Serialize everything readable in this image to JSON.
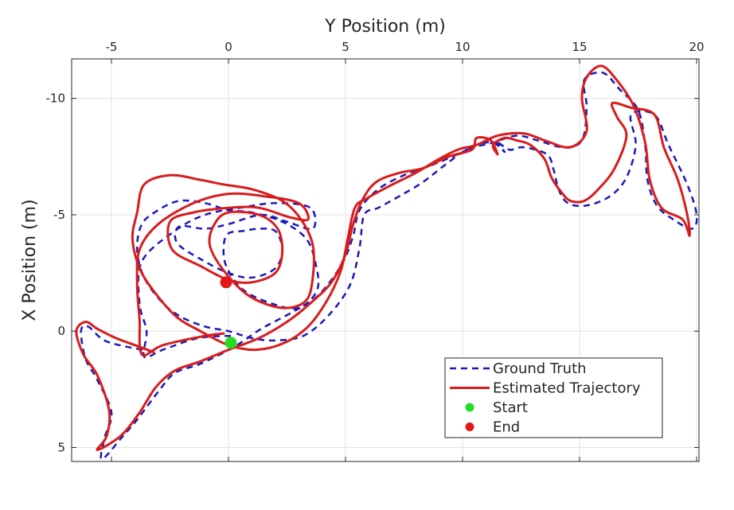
{
  "chart_data": {
    "type": "line",
    "xlabel": "Y Position (m)",
    "ylabel": "X Position (m)",
    "xlim": [
      -6.7,
      20.1
    ],
    "ylim": [
      5.6,
      -11.7
    ],
    "y_reversed": true,
    "x_axis_position": "top",
    "xticks": [
      -5,
      0,
      5,
      10,
      15,
      20
    ],
    "yticks": [
      -10,
      -5,
      0,
      5
    ],
    "xtick_labels": [
      "-5",
      "0",
      "5",
      "10",
      "15",
      "20"
    ],
    "ytick_labels": [
      "-10",
      "-5",
      "0",
      "5"
    ],
    "grid": true,
    "legend_position": "bottom-right",
    "series": [
      {
        "name": "Ground Truth",
        "style": "dashed",
        "color": "#1a1ab8",
        "points": [
          [
            0.1,
            0.2
          ],
          [
            -1.3,
            0.3
          ],
          [
            -2.8,
            0.8
          ],
          [
            -3.6,
            1.1
          ],
          [
            -3.5,
            0
          ],
          [
            -3.8,
            -1.2
          ],
          [
            -3.7,
            -3
          ],
          [
            -2.3,
            -4.3
          ],
          [
            -1,
            -5
          ],
          [
            0.5,
            -5.3
          ],
          [
            2,
            -5.5
          ],
          [
            3.5,
            -5.3
          ],
          [
            3.6,
            -4.4
          ],
          [
            2.5,
            -4.7
          ],
          [
            1.4,
            -5
          ],
          [
            0,
            -4.6
          ],
          [
            -1,
            -4.4
          ],
          [
            -2.1,
            -4.5
          ],
          [
            -2.2,
            -3.8
          ],
          [
            -1.2,
            -3.1
          ],
          [
            0,
            -2.5
          ],
          [
            1,
            -2.3
          ],
          [
            2,
            -2.7
          ],
          [
            2.3,
            -3.5
          ],
          [
            2,
            -4.3
          ],
          [
            1.3,
            -4.4
          ],
          [
            0.6,
            -4.3
          ],
          [
            0,
            -4.2
          ],
          [
            -0.2,
            -3.7
          ],
          [
            -0.1,
            -2.8
          ],
          [
            0.6,
            -1.8
          ],
          [
            1.8,
            -1.2
          ],
          [
            3,
            -1
          ],
          [
            3.8,
            -1.8
          ],
          [
            3.7,
            -3
          ],
          [
            3.3,
            -4
          ],
          [
            2.3,
            -4.7
          ],
          [
            1,
            -5.1
          ],
          [
            0,
            -5.2
          ],
          [
            -1,
            -5.5
          ],
          [
            -2.1,
            -5.6
          ],
          [
            -3,
            -5.2
          ],
          [
            -3.7,
            -4.6
          ],
          [
            -3.9,
            -3.5
          ],
          [
            -3.6,
            -2.3
          ],
          [
            -2.8,
            -1.2
          ],
          [
            -2,
            -0.6
          ],
          [
            -1,
            -0.2
          ],
          [
            0,
            0
          ],
          [
            1,
            0.3
          ],
          [
            2,
            0.4
          ],
          [
            3.2,
            0.2
          ],
          [
            4.3,
            -0.7
          ],
          [
            5.2,
            -2
          ],
          [
            5.6,
            -3.6
          ],
          [
            5.8,
            -5
          ],
          [
            6.4,
            -5.3
          ],
          [
            7.3,
            -5.8
          ],
          [
            8.3,
            -6.4
          ],
          [
            9.2,
            -7.1
          ],
          [
            10.2,
            -7.8
          ],
          [
            11.3,
            -8.1
          ],
          [
            12.3,
            -8.4
          ],
          [
            13.2,
            -8.2
          ],
          [
            14.3,
            -7.9
          ],
          [
            15.1,
            -8.2
          ],
          [
            15.3,
            -9.6
          ],
          [
            15.2,
            -10.8
          ],
          [
            16,
            -11.1
          ],
          [
            16.7,
            -10.4
          ],
          [
            17.5,
            -9.5
          ],
          [
            17.8,
            -8
          ],
          [
            17.9,
            -6.5
          ],
          [
            18.3,
            -5.4
          ],
          [
            19,
            -4.8
          ],
          [
            19.8,
            -4.4
          ],
          [
            20,
            -5
          ],
          [
            19.6,
            -6.3
          ],
          [
            18.8,
            -8
          ],
          [
            18.2,
            -9.3
          ],
          [
            17.2,
            -9.3
          ],
          [
            17.4,
            -8
          ],
          [
            17,
            -6.6
          ],
          [
            16.3,
            -5.8
          ],
          [
            15.3,
            -5.4
          ],
          [
            14.5,
            -5.5
          ],
          [
            14.1,
            -6.1
          ],
          [
            13.9,
            -6.9
          ],
          [
            13.6,
            -7.6
          ],
          [
            12.6,
            -7.9
          ],
          [
            12,
            -7.8
          ],
          [
            11.4,
            -8.2
          ],
          [
            11.8,
            -7.7
          ],
          [
            11.3,
            -8.1
          ],
          [
            10.6,
            -8
          ],
          [
            9.8,
            -7.6
          ],
          [
            8.6,
            -7.1
          ],
          [
            7.5,
            -6.7
          ],
          [
            6.4,
            -6.1
          ],
          [
            5.6,
            -5.2
          ],
          [
            5.3,
            -4
          ],
          [
            4.8,
            -2.8
          ],
          [
            3.8,
            -1.5
          ],
          [
            2.7,
            -0.8
          ],
          [
            1.4,
            -0.1
          ],
          [
            0.2,
            0.7
          ],
          [
            -1.2,
            1.4
          ],
          [
            -2.3,
            1.8
          ],
          [
            -3,
            2.6
          ],
          [
            -3.9,
            3.8
          ],
          [
            -4.5,
            4.5
          ],
          [
            -5.4,
            5.5
          ],
          [
            -5.3,
            4.6
          ],
          [
            -5,
            3.5
          ],
          [
            -5.6,
            2.1
          ],
          [
            -6.1,
            1.2
          ],
          [
            -6.3,
            0
          ],
          [
            -6,
            -0.2
          ],
          [
            -5.3,
            0.4
          ],
          [
            -4.2,
            0.7
          ],
          [
            -3,
            0.9
          ]
        ]
      },
      {
        "name": "Estimated Trajectory",
        "style": "solid",
        "color": "#d81c1c",
        "points": [
          [
            -0.2,
            0.1
          ],
          [
            -1,
            0.2
          ],
          [
            -2.8,
            0.6
          ],
          [
            -3.7,
            1
          ],
          [
            -3.8,
            -0.5
          ],
          [
            -3.9,
            -2
          ],
          [
            -3.8,
            -3.5
          ],
          [
            -3,
            -4.6
          ],
          [
            -1.5,
            -5.5
          ],
          [
            0,
            -5.9
          ],
          [
            1.5,
            -5.8
          ],
          [
            3,
            -5.5
          ],
          [
            3.4,
            -4.8
          ],
          [
            2.6,
            -4.9
          ],
          [
            1.3,
            -5.3
          ],
          [
            0,
            -5.3
          ],
          [
            -1.5,
            -5.1
          ],
          [
            -2.5,
            -4.7
          ],
          [
            -2.4,
            -3.5
          ],
          [
            -1.2,
            -2.8
          ],
          [
            0,
            -2.2
          ],
          [
            1,
            -2.1
          ],
          [
            2,
            -2.5
          ],
          [
            2.3,
            -3.4
          ],
          [
            2.1,
            -4.4
          ],
          [
            1.3,
            -5
          ],
          [
            0,
            -5.1
          ],
          [
            -0.6,
            -4.6
          ],
          [
            -0.8,
            -3.7
          ],
          [
            -0.2,
            -2.6
          ],
          [
            0.9,
            -1.5
          ],
          [
            2.3,
            -1
          ],
          [
            3.3,
            -1.3
          ],
          [
            3.6,
            -2.3
          ],
          [
            3.6,
            -3.7
          ],
          [
            3.1,
            -4.8
          ],
          [
            2.3,
            -5.6
          ],
          [
            1,
            -6.1
          ],
          [
            -0.2,
            -6.3
          ],
          [
            -1.2,
            -6.5
          ],
          [
            -2.5,
            -6.7
          ],
          [
            -3.6,
            -6.3
          ],
          [
            -3.9,
            -5.1
          ],
          [
            -4.1,
            -4
          ],
          [
            -3.8,
            -2.7
          ],
          [
            -3.1,
            -1.6
          ],
          [
            -2.2,
            -0.6
          ],
          [
            -1.2,
            0
          ],
          [
            0,
            0.6
          ],
          [
            1.2,
            0.8
          ],
          [
            2.4,
            0.5
          ],
          [
            3.4,
            -0.2
          ],
          [
            4.2,
            -1.3
          ],
          [
            4.8,
            -2.6
          ],
          [
            5.1,
            -4
          ],
          [
            5.4,
            -5.3
          ],
          [
            5.9,
            -5.7
          ],
          [
            7,
            -6.3
          ],
          [
            8,
            -6.8
          ],
          [
            9,
            -7.4
          ],
          [
            9.8,
            -7.8
          ],
          [
            10.6,
            -8
          ],
          [
            11.5,
            -8.4
          ],
          [
            12.6,
            -8.5
          ],
          [
            13.5,
            -8.2
          ],
          [
            14.6,
            -7.9
          ],
          [
            15.3,
            -8.6
          ],
          [
            15.1,
            -10
          ],
          [
            15.3,
            -10.9
          ],
          [
            15.9,
            -11.4
          ],
          [
            16.5,
            -10.9
          ],
          [
            17.3,
            -9.7
          ],
          [
            17.8,
            -8.1
          ],
          [
            18,
            -6.5
          ],
          [
            18.5,
            -5.3
          ],
          [
            19.4,
            -4.8
          ],
          [
            19.7,
            -4.1
          ],
          [
            19.6,
            -5
          ],
          [
            19.2,
            -6.5
          ],
          [
            18.6,
            -7.9
          ],
          [
            18.2,
            -9.3
          ],
          [
            17.2,
            -9.6
          ],
          [
            16.4,
            -9.8
          ],
          [
            16.6,
            -9.2
          ],
          [
            17,
            -8.4
          ],
          [
            16.5,
            -7
          ],
          [
            15.8,
            -6.1
          ],
          [
            15.2,
            -5.6
          ],
          [
            14.6,
            -5.6
          ],
          [
            14.2,
            -6
          ],
          [
            13.8,
            -6.6
          ],
          [
            13.5,
            -7.4
          ],
          [
            12.9,
            -8
          ],
          [
            12.3,
            -8.2
          ],
          [
            11.8,
            -8.3
          ],
          [
            11.3,
            -8
          ],
          [
            11.5,
            -7.6
          ],
          [
            11.2,
            -8.2
          ],
          [
            10.6,
            -8.3
          ],
          [
            10.4,
            -7.8
          ],
          [
            9.4,
            -7.5
          ],
          [
            8.3,
            -7
          ],
          [
            7.3,
            -6.8
          ],
          [
            6.3,
            -6.4
          ],
          [
            5.7,
            -5.6
          ],
          [
            5.3,
            -4.5
          ],
          [
            5,
            -3.3
          ],
          [
            4.4,
            -2.1
          ],
          [
            3.5,
            -1.2
          ],
          [
            2.5,
            -0.4
          ],
          [
            1.3,
            0.3
          ],
          [
            0,
            0.8
          ],
          [
            -1.2,
            1.3
          ],
          [
            -2.3,
            1.7
          ],
          [
            -3.1,
            2.4
          ],
          [
            -3.8,
            3.5
          ],
          [
            -4.6,
            4.5
          ],
          [
            -5.6,
            5.1
          ],
          [
            -5.2,
            4.5
          ],
          [
            -5.1,
            3.4
          ],
          [
            -5.6,
            1.9
          ],
          [
            -6.2,
            1
          ],
          [
            -6.5,
            0
          ],
          [
            -6.1,
            -0.4
          ],
          [
            -5.6,
            -0.1
          ],
          [
            -4.8,
            0.3
          ],
          [
            -4,
            0.6
          ],
          [
            -3.2,
            0.9
          ]
        ]
      }
    ],
    "markers": [
      {
        "name": "Start",
        "x": 0.1,
        "y": 0.5,
        "color": "#22dd22"
      },
      {
        "name": "End",
        "x": -0.1,
        "y": -2.1,
        "color": "#e01818"
      }
    ],
    "legend": [
      {
        "label": "Ground Truth",
        "kind": "dashed-line",
        "color": "#1a1ab8"
      },
      {
        "label": "Estimated Trajectory",
        "kind": "solid-line",
        "color": "#d81c1c"
      },
      {
        "label": "Start",
        "kind": "dot",
        "color": "#22dd22"
      },
      {
        "label": "End",
        "kind": "dot",
        "color": "#e01818"
      }
    ]
  }
}
